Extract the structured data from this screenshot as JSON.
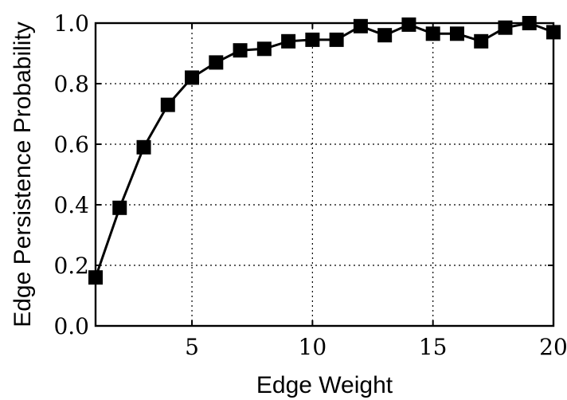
{
  "chart_data": {
    "type": "line",
    "title": "",
    "xlabel": "Edge Weight",
    "ylabel": "Edge Persistence Probability",
    "xlim": [
      1,
      20
    ],
    "ylim": [
      0.0,
      1.0
    ],
    "xticks": [
      5,
      10,
      15,
      20
    ],
    "xtick_labels": [
      "5",
      "10",
      "15",
      "20"
    ],
    "yticks": [
      0.0,
      0.2,
      0.4,
      0.6,
      0.8,
      1.0
    ],
    "ytick_labels": [
      "0.0",
      "0.2",
      "0.4",
      "0.6",
      "0.8",
      "1.0"
    ],
    "grid": true,
    "marker": "square",
    "color": "#000000",
    "series": [
      {
        "x": [
          1,
          2,
          3,
          4,
          5,
          6,
          7,
          8,
          9,
          10,
          11,
          12,
          13,
          14,
          15,
          16,
          17,
          18,
          19,
          20
        ],
        "values": [
          0.16,
          0.39,
          0.59,
          0.73,
          0.82,
          0.87,
          0.91,
          0.915,
          0.94,
          0.945,
          0.945,
          0.99,
          0.96,
          0.995,
          0.965,
          0.965,
          0.94,
          0.985,
          1.0,
          0.97
        ]
      }
    ]
  }
}
